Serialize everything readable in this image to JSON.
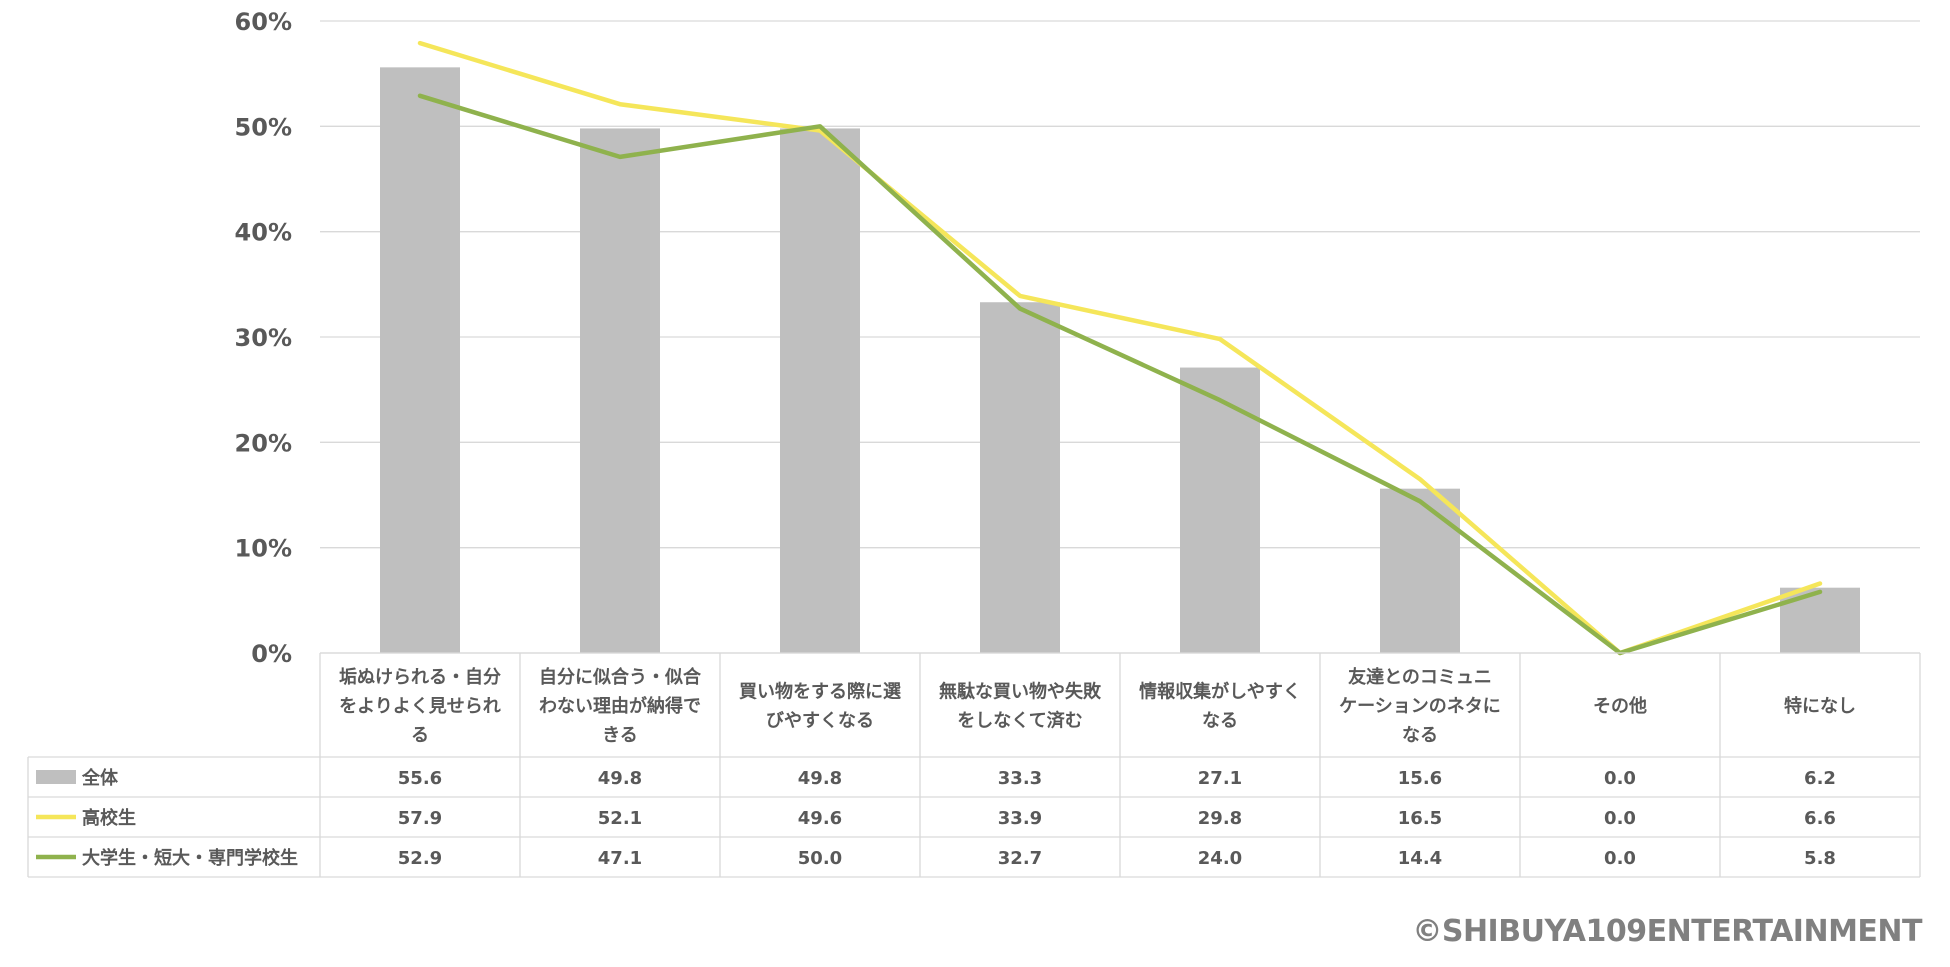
{
  "chart_data": {
    "type": "bar",
    "categories": [
      "垢ぬけられる・自分をよりよく見せられる",
      "自分に似合う・似合わない理由が納得できる",
      "買い物をする際に選びやすくなる",
      "無駄な買い物や失敗をしなくて済む",
      "情報収集がしやすくなる",
      "友達とのコミュニケーションのネタになる",
      "その他",
      "特になし"
    ],
    "category_lines": [
      [
        "垢ぬけられる・自分",
        "をよりよく見せられ",
        "る"
      ],
      [
        "自分に似合う・似合",
        "わない理由が納得で",
        "きる"
      ],
      [
        "買い物をする際に選",
        "びやすくなる"
      ],
      [
        "無駄な買い物や失敗",
        "をしなくて済む"
      ],
      [
        "情報収集がしやすく",
        "なる"
      ],
      [
        "友達とのコミュニ",
        "ケーションのネタに",
        "なる"
      ],
      [
        "その他"
      ],
      [
        "特になし"
      ]
    ],
    "series": [
      {
        "name": "全体",
        "type": "bar",
        "color": "#bfbfbf",
        "values": [
          55.6,
          49.8,
          49.8,
          33.3,
          27.1,
          15.6,
          0.0,
          6.2
        ]
      },
      {
        "name": "高校生",
        "type": "line",
        "color": "#f5e65a",
        "values": [
          57.9,
          52.1,
          49.6,
          33.9,
          29.8,
          16.5,
          0.0,
          6.6
        ]
      },
      {
        "name": "大学生・短大・専門学校生",
        "type": "line",
        "color": "#8fb24d",
        "values": [
          52.9,
          47.1,
          50.0,
          32.7,
          24.0,
          14.4,
          0.0,
          5.8
        ]
      }
    ],
    "ylim": [
      0,
      60
    ],
    "yticks": [
      0,
      10,
      20,
      30,
      40,
      50,
      60
    ],
    "ytick_suffix": "%",
    "grid": true,
    "legend": "data-table"
  },
  "copyright": "©SHIBUYA109ENTERTAINMENT"
}
